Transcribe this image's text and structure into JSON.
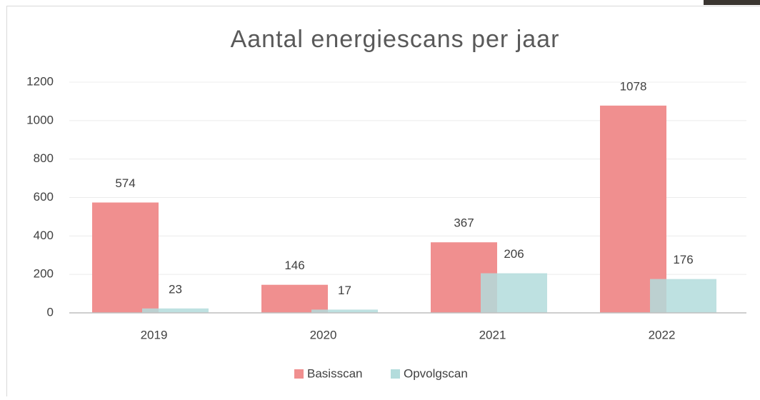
{
  "chart_data": {
    "type": "bar",
    "title": "Aantal energiescans per jaar",
    "categories": [
      "2019",
      "2020",
      "2021",
      "2022"
    ],
    "series": [
      {
        "name": "Basisscan",
        "color": "#f08f8f",
        "values": [
          574,
          146,
          367,
          1078
        ]
      },
      {
        "name": "Opvolgscan",
        "color": "#b3dcdc",
        "values": [
          23,
          17,
          206,
          176
        ]
      }
    ],
    "ylim": [
      0,
      1200
    ],
    "yticks": [
      0,
      200,
      400,
      600,
      800,
      1000,
      1200
    ],
    "grid": true,
    "legend": "bottom"
  }
}
